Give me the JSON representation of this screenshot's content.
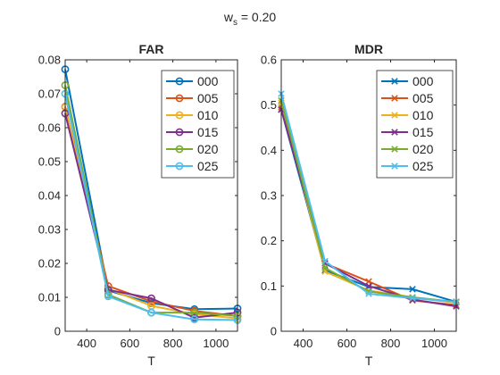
{
  "figure": {
    "suptitle_base": "w",
    "suptitle_sub": "s",
    "suptitle_rest": " = 0.20"
  },
  "colors": {
    "000": "#0072BD",
    "005": "#D95319",
    "010": "#EDB120",
    "015": "#7E2F8E",
    "020": "#77AC30",
    "025": "#4DBEEE"
  },
  "chart_data": [
    {
      "type": "line",
      "title": "FAR",
      "xlabel": "T",
      "ylabel": "",
      "marker": "circle",
      "xlim": [
        300,
        1100
      ],
      "ylim": [
        0,
        0.08
      ],
      "xticks": [
        400,
        600,
        800,
        1000
      ],
      "xtick_labels": [
        "400",
        "600",
        "800",
        "1000"
      ],
      "yticks": [
        0,
        0.01,
        0.02,
        0.03,
        0.04,
        0.05,
        0.06,
        0.07,
        0.08
      ],
      "ytick_labels": [
        "0",
        "0.01",
        "0.02",
        "0.03",
        "0.04",
        "0.05",
        "0.06",
        "0.07",
        "0.08"
      ],
      "legend_position": "top-right",
      "x": [
        300,
        500,
        700,
        900,
        1100
      ],
      "series": [
        {
          "name": "000",
          "values": [
            0.0772,
            0.012,
            0.0083,
            0.0065,
            0.0067
          ]
        },
        {
          "name": "005",
          "values": [
            0.0662,
            0.0133,
            0.0088,
            0.006,
            0.0045
          ]
        },
        {
          "name": "010",
          "values": [
            0.066,
            0.0125,
            0.0075,
            0.005,
            0.0038
          ]
        },
        {
          "name": "015",
          "values": [
            0.0642,
            0.0122,
            0.0097,
            0.004,
            0.0055
          ]
        },
        {
          "name": "020",
          "values": [
            0.0725,
            0.0108,
            0.0055,
            0.0055,
            0.0045
          ]
        },
        {
          "name": "025",
          "values": [
            0.07,
            0.0103,
            0.0055,
            0.0035,
            0.0033
          ]
        }
      ]
    },
    {
      "type": "line",
      "title": "MDR",
      "xlabel": "T",
      "ylabel": "",
      "marker": "x",
      "xlim": [
        300,
        1100
      ],
      "ylim": [
        0,
        0.6
      ],
      "xticks": [
        400,
        600,
        800,
        1000
      ],
      "xtick_labels": [
        "400",
        "600",
        "800",
        "1000"
      ],
      "yticks": [
        0,
        0.1,
        0.2,
        0.3,
        0.4,
        0.5,
        0.6
      ],
      "ytick_labels": [
        "0",
        "0.1",
        "0.2",
        "0.3",
        "0.4",
        "0.5",
        "0.6"
      ],
      "legend_position": "top-right",
      "x": [
        300,
        500,
        700,
        900,
        1100
      ],
      "series": [
        {
          "name": "000",
          "values": [
            0.49,
            0.135,
            0.098,
            0.093,
            0.065
          ]
        },
        {
          "name": "005",
          "values": [
            0.495,
            0.15,
            0.11,
            0.068,
            0.058
          ]
        },
        {
          "name": "010",
          "values": [
            0.505,
            0.132,
            0.09,
            0.075,
            0.063
          ]
        },
        {
          "name": "015",
          "values": [
            0.49,
            0.15,
            0.1,
            0.07,
            0.055
          ]
        },
        {
          "name": "020",
          "values": [
            0.51,
            0.14,
            0.088,
            0.075,
            0.065
          ]
        },
        {
          "name": "025",
          "values": [
            0.525,
            0.155,
            0.083,
            0.073,
            0.065
          ]
        }
      ]
    }
  ]
}
